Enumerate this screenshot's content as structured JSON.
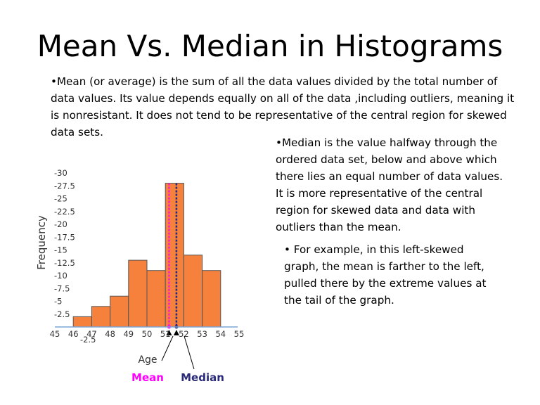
{
  "slide": {
    "title": "Mean Vs. Median in Histograms",
    "paragraph_mean": "•Mean (or average) is the sum of all the data values divided by the total number of data values. Its value depends equally on all of the data ,including outliers, meaning it is  nonresistant. It does not tend to be representative of the central region for skewed data sets.",
    "paragraph_median": "•Median is the value halfway through the ordered data set, below and above which there lies an equal number of data values. It is more representative of the central region for skewed data and data with outliers than the mean.",
    "paragraph_example": "• For example, in this left-skewed graph, the mean is farther to the left, pulled there by the extreme values at the tail  of the graph."
  },
  "chart_data": {
    "type": "bar",
    "xlabel": "Age",
    "ylabel": "Frequency",
    "xlim": [
      45,
      55
    ],
    "ylim": [
      -2.5,
      30
    ],
    "y_ticks": [
      "-2.5",
      "-2.5",
      "-5",
      "-7.5",
      "-10",
      "-12.5",
      "-15",
      "-17.5",
      "-20",
      "-22.5",
      "-25",
      "-27.5",
      "-30"
    ],
    "x_ticks": [
      "45",
      "46",
      "47",
      "48",
      "49",
      "50",
      "51",
      "52",
      "53",
      "54",
      "55"
    ],
    "bins": [
      {
        "start": 46,
        "end": 47,
        "value": 2
      },
      {
        "start": 47,
        "end": 48,
        "value": 4
      },
      {
        "start": 48,
        "end": 49,
        "value": 6
      },
      {
        "start": 49,
        "end": 50,
        "value": 13
      },
      {
        "start": 50,
        "end": 51,
        "value": 11
      },
      {
        "start": 51,
        "end": 52,
        "value": 28
      },
      {
        "start": 52,
        "end": 53,
        "value": 14
      },
      {
        "start": 53,
        "end": 54,
        "value": 11
      }
    ],
    "mean": {
      "label": "Mean",
      "value": 51.2,
      "color": "#ff00ff"
    },
    "median": {
      "label": "Median",
      "value": 51.6,
      "color": "#2a2a7a"
    },
    "bar_color": "#f5813c"
  }
}
